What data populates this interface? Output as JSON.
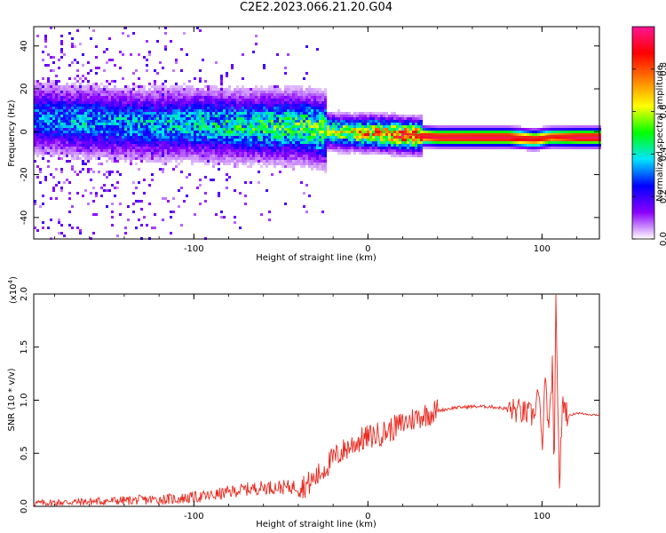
{
  "figure_title": "C2E2.2023.066.21.20.G04",
  "colors": {
    "snr_line": "#e8291f",
    "spectrum_core": "#e8291f",
    "axis": "#000000"
  },
  "colorbar": {
    "label": "Normalized spectral amplitude",
    "ticks": [
      "0.0",
      "0.2",
      "0.4",
      "0.6",
      "0.8"
    ],
    "tick_values": [
      0.0,
      0.2,
      0.4,
      0.6,
      0.8
    ],
    "range": [
      0,
      1
    ],
    "colormap": [
      "#ffffff",
      "#8b00ff",
      "#0000ff",
      "#00e5ff",
      "#00ff00",
      "#ffff00",
      "#ff7f00",
      "#ff0000",
      "#ff1493"
    ]
  },
  "chart_data": [
    {
      "type": "heatmap",
      "title": "",
      "xlabel": "Height of straight line (km)",
      "ylabel": "Frequency (Hz)",
      "xlim": [
        -192,
        133
      ],
      "ylim": [
        -50,
        49
      ],
      "x_ticks": [
        -100,
        0,
        100
      ],
      "x_tick_labels": [
        "-100",
        "0",
        "100"
      ],
      "y_ticks": [
        -40,
        -20,
        0,
        20,
        40
      ],
      "y_tick_labels": [
        "-40",
        "-20",
        "0",
        "20",
        "40"
      ],
      "ridge": {
        "x": [
          -190,
          -160,
          -130,
          -100,
          -70,
          -40,
          -25,
          -10,
          0,
          20,
          40,
          60,
          80,
          95,
          105,
          120,
          133
        ],
        "freq": [
          7,
          5,
          4,
          4,
          3,
          3,
          1,
          0,
          0,
          -1,
          -2,
          -2,
          -2,
          -3,
          -2,
          -2,
          -2
        ],
        "amplitude": [
          0.35,
          0.4,
          0.4,
          0.45,
          0.5,
          0.55,
          0.6,
          0.7,
          0.8,
          0.9,
          0.95,
          0.97,
          0.97,
          0.9,
          0.85,
          0.98,
          0.98
        ]
      },
      "grid": false
    },
    {
      "type": "line",
      "title": "",
      "xlabel": "Height of straight line (km)",
      "ylabel": "SNR (10 * v/v)",
      "y_multiplier_label": "(x10",
      "y_multiplier_exp": "4",
      "xlim": [
        -192,
        133
      ],
      "ylim": [
        0,
        2.0
      ],
      "x_ticks": [
        -100,
        0,
        100
      ],
      "x_tick_labels": [
        "-100",
        "0",
        "100"
      ],
      "y_ticks": [
        0.0,
        0.5,
        1.0,
        1.5,
        2.0
      ],
      "y_tick_labels": [
        "0.0",
        "0.5",
        "1.0",
        "1.5",
        "2.0"
      ],
      "series": [
        {
          "x": [
            -192,
            -170,
            -150,
            -130,
            -110,
            -90,
            -75,
            -60,
            -45,
            -35,
            -28,
            -20,
            -12,
            -5,
            0,
            10,
            20,
            30,
            40,
            50,
            60,
            70,
            75,
            80,
            85,
            90,
            95,
            98,
            100,
            102,
            104,
            106,
            107,
            108,
            110,
            112,
            115,
            120,
            125,
            133
          ],
          "y": [
            0.03,
            0.04,
            0.05,
            0.06,
            0.07,
            0.1,
            0.15,
            0.18,
            0.18,
            0.2,
            0.3,
            0.45,
            0.55,
            0.62,
            0.65,
            0.7,
            0.78,
            0.85,
            0.9,
            0.93,
            0.94,
            0.94,
            0.93,
            0.92,
            0.9,
            0.88,
            0.85,
            1.1,
            0.55,
            1.2,
            0.65,
            1.35,
            0.12,
            2.0,
            0.2,
            1.0,
            0.85,
            0.88,
            0.87,
            0.86
          ]
        }
      ],
      "grid": false
    }
  ]
}
